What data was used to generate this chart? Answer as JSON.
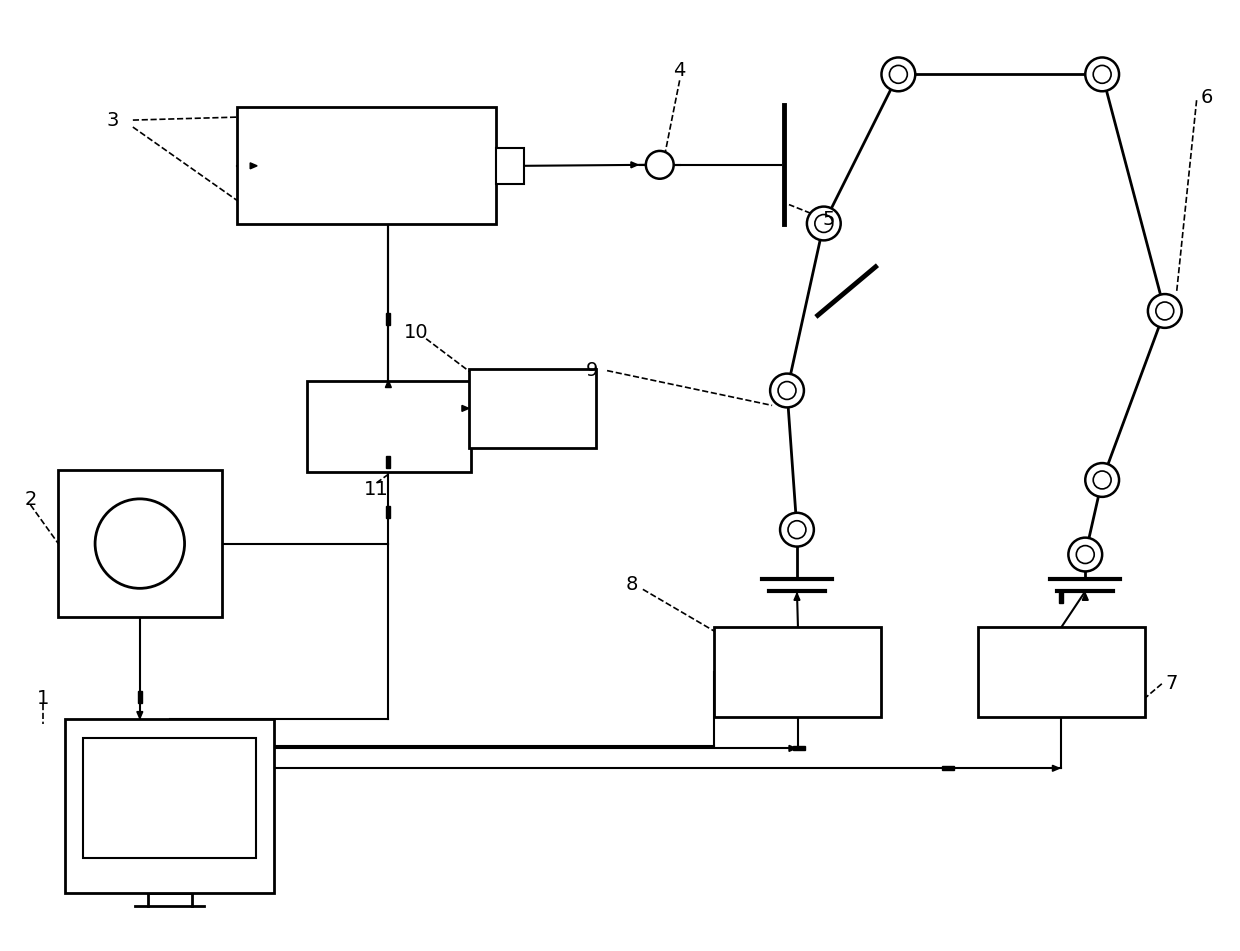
{
  "bg_color": "#ffffff",
  "lc": "#000000",
  "lw": 1.5,
  "fig_w": 12.4,
  "fig_h": 9.51,
  "dpi": 100
}
